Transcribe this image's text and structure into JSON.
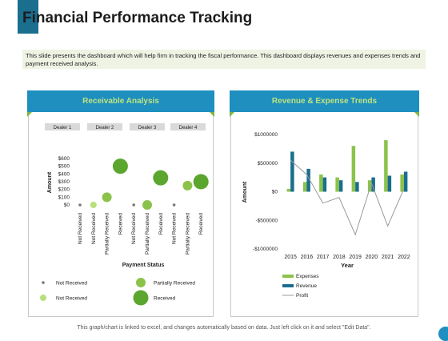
{
  "title": "Financial Performance Tracking",
  "description": "This slide presents the dashboard which will help firm in tracking the fiscal performance. This dashboard displays revenues and expenses trends and payment received analysis.",
  "footer": "This graph/chart is linked to excel, and changes automatically based on data. Just left click on it and select \"Edit Data\".",
  "colors": {
    "accent_blue": "#1e8fbf",
    "accent_green": "#7cb342",
    "dark_teal": "#1a6e8e",
    "light_green": "#8bc34a",
    "revenue": "#1a6e8e",
    "expenses": "#8bc34a",
    "profit": "#999999"
  },
  "chart_data": [
    {
      "type": "scatter",
      "title": "Receivable Analysis",
      "xlabel": "Payment Status",
      "ylabel": "Amount",
      "groups": [
        "Dealer 1",
        "Dealer 2",
        "Dealer 3",
        "Dealer 4"
      ],
      "categories": [
        "Not Received",
        "Not Received",
        "Partially Received",
        "Received",
        "Not Received",
        "Partially Received",
        "Received",
        "Not Received",
        "Partially Received",
        "Received"
      ],
      "y_ticks": [
        "$0",
        "$100",
        "$200",
        "$300",
        "$400",
        "$500",
        "$600"
      ],
      "ylim": [
        0,
        600
      ],
      "points": [
        {
          "index": 0,
          "y": 0,
          "size": 1,
          "status": "Not Received"
        },
        {
          "index": 1,
          "y": 0,
          "size": 2,
          "status": "Not Received"
        },
        {
          "index": 2,
          "y": 100,
          "size": 3,
          "status": "Partially Received"
        },
        {
          "index": 3,
          "y": 500,
          "size": 4,
          "status": "Received"
        },
        {
          "index": 4,
          "y": 0,
          "size": 1,
          "status": "Not Received"
        },
        {
          "index": 5,
          "y": 0,
          "size": 3,
          "status": "Partially Received"
        },
        {
          "index": 6,
          "y": 350,
          "size": 4,
          "status": "Received"
        },
        {
          "index": 7,
          "y": 0,
          "size": 1,
          "status": "Not Received"
        },
        {
          "index": 8,
          "y": 250,
          "size": 3,
          "status": "Partially Received"
        },
        {
          "index": 9,
          "y": 300,
          "size": 4,
          "status": "Received"
        }
      ],
      "legend": [
        {
          "label": "Not Received",
          "size": 1
        },
        {
          "label": "Partially Received",
          "size": 3
        },
        {
          "label": "Not Received",
          "size": 2
        },
        {
          "label": "Received",
          "size": 4
        }
      ]
    },
    {
      "type": "bar",
      "title": "Revenue & Expense Trends",
      "xlabel": "Year",
      "ylabel": "Amount",
      "categories": [
        "2015",
        "2016",
        "2017",
        "2018",
        "2019",
        "2020",
        "2021",
        "2022"
      ],
      "y_ticks": [
        "-$1000000",
        "-$500000",
        "$0",
        "$500000",
        "$1000000"
      ],
      "ylim": [
        -1000000,
        1000000
      ],
      "series": [
        {
          "name": "Expenses",
          "values": [
            50000,
            170000,
            300000,
            250000,
            800000,
            200000,
            900000,
            300000
          ]
        },
        {
          "name": "Revenue",
          "values": [
            700000,
            400000,
            250000,
            200000,
            170000,
            250000,
            280000,
            350000
          ]
        },
        {
          "name": "Profit",
          "values": [
            550000,
            300000,
            -200000,
            -100000,
            -750000,
            150000,
            -600000,
            50000
          ]
        }
      ]
    }
  ]
}
